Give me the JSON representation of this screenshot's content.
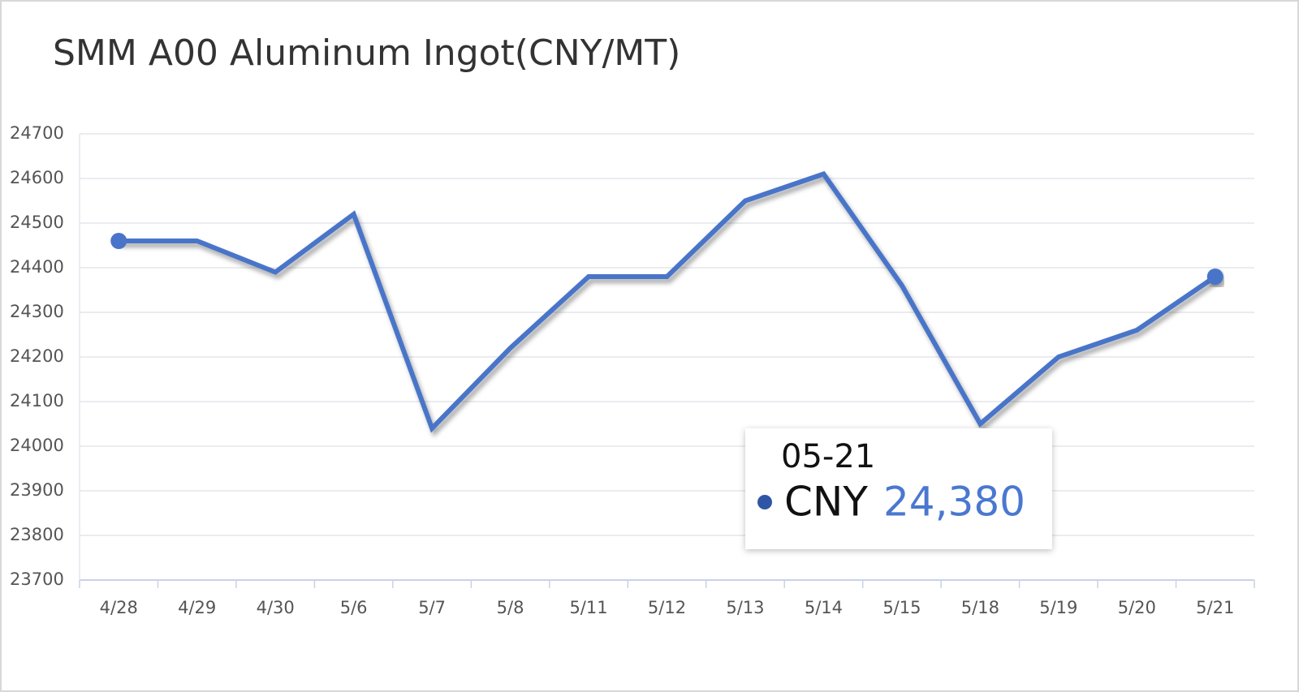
{
  "chart_data": {
    "type": "line",
    "title": "SMM A00 Aluminum Ingot(CNY/MT)",
    "categories": [
      "4/28",
      "4/29",
      "4/30",
      "5/6",
      "5/7",
      "5/8",
      "5/11",
      "5/12",
      "5/13",
      "5/14",
      "5/15",
      "5/18",
      "5/19",
      "5/20",
      "5/21"
    ],
    "values": [
      24460,
      24460,
      24390,
      24520,
      24040,
      24220,
      24380,
      24380,
      24550,
      24610,
      24360,
      24050,
      24200,
      24260,
      24380
    ],
    "color": "#4a74c9",
    "ylim": [
      23700,
      24700
    ],
    "yticks": [
      23700,
      23800,
      23900,
      24000,
      24100,
      24200,
      24300,
      24400,
      24500,
      24600,
      24700
    ],
    "grid": true,
    "tooltip": {
      "title": "05-21",
      "label": "CNY",
      "value": 24380,
      "value_label": "24,380"
    }
  }
}
